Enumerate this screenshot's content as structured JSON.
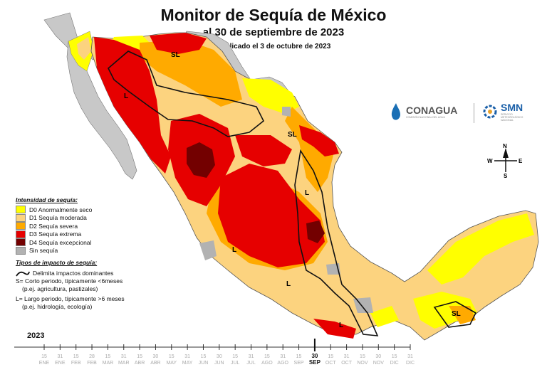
{
  "header": {
    "title": "Monitor de Sequía de México",
    "subtitle": "al 30 de septiembre de 2023",
    "published": "Publicado el 3 de octubre de 2023"
  },
  "legend": {
    "heading": "Intensidad de sequía:",
    "items": [
      {
        "label": "D0 Anormalmente seco",
        "color": "#ffff00"
      },
      {
        "label": "D1 Sequía moderada",
        "color": "#fcd37f"
      },
      {
        "label": "D2 Sequía severa",
        "color": "#ffaa00"
      },
      {
        "label": "D3 Sequía extrema",
        "color": "#e60000"
      },
      {
        "label": "D4 Sequía excepcional",
        "color": "#730000"
      },
      {
        "label": "Sin sequía",
        "color": "#b2b2b2"
      }
    ]
  },
  "impact": {
    "heading": "Tipos de impacto de sequía:",
    "line_label": "Delimita impactos dominantes",
    "s_line1": "S= Corto periodo, típicamente <6meses",
    "s_line2": "(p.ej. agricultura, pastizales)",
    "l_line1": "L= Largo periodo, típicamente >6 meses",
    "l_line2": "(p.ej. hidrología, ecología)"
  },
  "map_labels": [
    "SL",
    "L",
    "SL",
    "L",
    "L",
    "L",
    "SL",
    "L"
  ],
  "compass": {
    "n": "N",
    "s": "S",
    "e": "E",
    "w": "W"
  },
  "logos": {
    "conagua": "CONAGUA",
    "conagua_sub": "COMISIÓN NACIONAL DEL AGUA",
    "smn": "SMN",
    "smn_sub": "SERVICIO METEOROLÓGICO NACIONAL"
  },
  "timeline": {
    "year": "2023",
    "days": [
      "15",
      "31",
      "15",
      "28",
      "15",
      "31",
      "15",
      "30",
      "15",
      "31",
      "15",
      "30",
      "15",
      "31",
      "15",
      "31",
      "15",
      "30",
      "15",
      "31",
      "15",
      "30",
      "15",
      "31"
    ],
    "months": [
      "ENE",
      "ENE",
      "FEB",
      "FEB",
      "MAR",
      "MAR",
      "ABR",
      "ABR",
      "MAY",
      "MAY",
      "JUN",
      "JUN",
      "JUL",
      "JUL",
      "AGO",
      "AGO",
      "SEP",
      "SEP",
      "OCT",
      "OCT",
      "NOV",
      "NOV",
      "DIC",
      "DIC"
    ],
    "current_index": 17
  }
}
